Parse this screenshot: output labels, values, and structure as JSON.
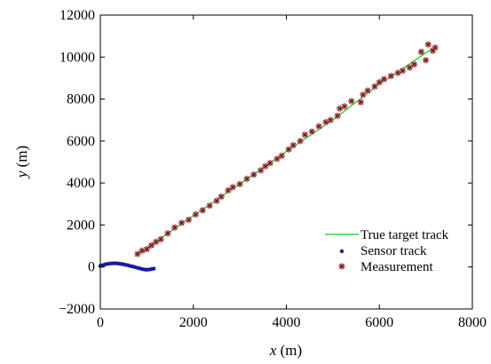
{
  "chart_data": {
    "type": "scatter",
    "title": "",
    "xlabel": {
      "var": "x",
      "unit": " (m)"
    },
    "ylabel": {
      "var": "y",
      "unit": " (m)"
    },
    "xlim": [
      0,
      8000
    ],
    "ylim": [
      -2000,
      12000
    ],
    "xticks": [
      0,
      2000,
      4000,
      6000,
      8000
    ],
    "yticks": [
      -2000,
      0,
      2000,
      4000,
      6000,
      8000,
      10000,
      12000
    ],
    "xtick_labels": [
      "0",
      "2000",
      "4000",
      "6000",
      "8000"
    ],
    "ytick_labels": [
      "−2000",
      "0",
      "2000",
      "4000",
      "6000",
      "8000",
      "10000",
      "12000"
    ],
    "grid": false,
    "legend_position": "lower-right",
    "colors": {
      "true_track": "#3ecf3e",
      "sensor": "#1a1aa0",
      "measurement_fill": "#e06060",
      "measurement_stroke": "#222222"
    },
    "series": [
      {
        "name": "True target track",
        "kind": "line",
        "points": [
          [
            800,
            600
          ],
          [
            2000,
            2450
          ],
          [
            3000,
            3950
          ],
          [
            4000,
            5500
          ],
          [
            5000,
            7000
          ],
          [
            6000,
            8700
          ],
          [
            7200,
            10500
          ]
        ]
      },
      {
        "name": "Sensor track",
        "kind": "dots",
        "points": [
          [
            0,
            50
          ],
          [
            50,
            90
          ],
          [
            100,
            120
          ],
          [
            150,
            145
          ],
          [
            200,
            160
          ],
          [
            250,
            170
          ],
          [
            300,
            175
          ],
          [
            350,
            170
          ],
          [
            400,
            160
          ],
          [
            450,
            145
          ],
          [
            500,
            125
          ],
          [
            550,
            100
          ],
          [
            600,
            75
          ],
          [
            650,
            45
          ],
          [
            700,
            20
          ],
          [
            750,
            -10
          ],
          [
            800,
            -40
          ],
          [
            850,
            -70
          ],
          [
            900,
            -100
          ],
          [
            950,
            -120
          ],
          [
            1000,
            -130
          ],
          [
            1050,
            -120
          ],
          [
            1100,
            -100
          ],
          [
            1150,
            -80
          ]
        ]
      },
      {
        "name": "Measurement",
        "kind": "star",
        "points": [
          [
            800,
            620
          ],
          [
            900,
            780
          ],
          [
            1000,
            850
          ],
          [
            1100,
            1030
          ],
          [
            1200,
            1200
          ],
          [
            1300,
            1320
          ],
          [
            1450,
            1600
          ],
          [
            1600,
            1880
          ],
          [
            1750,
            2100
          ],
          [
            1900,
            2250
          ],
          [
            2050,
            2500
          ],
          [
            2200,
            2700
          ],
          [
            2350,
            2920
          ],
          [
            2500,
            3150
          ],
          [
            2600,
            3350
          ],
          [
            2750,
            3650
          ],
          [
            2850,
            3800
          ],
          [
            3000,
            3950
          ],
          [
            3150,
            4200
          ],
          [
            3300,
            4400
          ],
          [
            3450,
            4600
          ],
          [
            3550,
            4800
          ],
          [
            3650,
            4950
          ],
          [
            3800,
            5150
          ],
          [
            3900,
            5300
          ],
          [
            4050,
            5600
          ],
          [
            4150,
            5800
          ],
          [
            4300,
            6000
          ],
          [
            4400,
            6300
          ],
          [
            4550,
            6450
          ],
          [
            4700,
            6700
          ],
          [
            4850,
            6900
          ],
          [
            4950,
            7000
          ],
          [
            5100,
            7200
          ],
          [
            5150,
            7550
          ],
          [
            5250,
            7650
          ],
          [
            5400,
            7900
          ],
          [
            5600,
            7850
          ],
          [
            5650,
            8200
          ],
          [
            5750,
            8400
          ],
          [
            5900,
            8600
          ],
          [
            6000,
            8800
          ],
          [
            6100,
            8950
          ],
          [
            6250,
            9100
          ],
          [
            6400,
            9250
          ],
          [
            6500,
            9350
          ],
          [
            6650,
            9500
          ],
          [
            6750,
            9650
          ],
          [
            6900,
            10250
          ],
          [
            7000,
            9850
          ],
          [
            7050,
            10600
          ],
          [
            7150,
            10300
          ],
          [
            7200,
            10450
          ]
        ]
      }
    ]
  }
}
